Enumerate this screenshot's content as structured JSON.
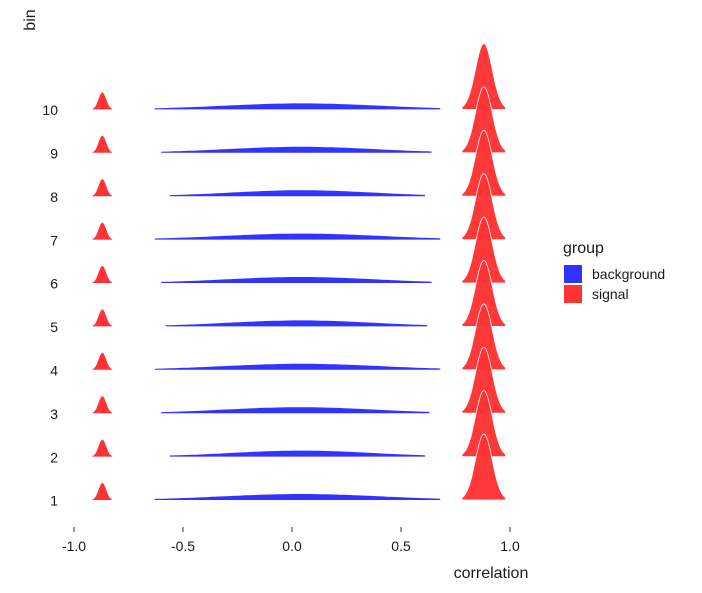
{
  "chart_data": {
    "type": "ridgeline",
    "title": "",
    "xlabel": "correlation",
    "ylabel": "bin",
    "xlim": [
      -1.0,
      1.0
    ],
    "x_ticks": [
      "-1.0",
      "-0.5",
      "0.0",
      "0.5",
      "1.0"
    ],
    "x_tick_values": [
      -1.0,
      -0.5,
      0.0,
      0.5,
      1.0
    ],
    "categories": [
      "1",
      "2",
      "3",
      "4",
      "5",
      "6",
      "7",
      "8",
      "9",
      "10"
    ],
    "grid": false,
    "legend": {
      "title": "group",
      "position": "right",
      "entries": [
        {
          "label": "background",
          "color": "#3333ff"
        },
        {
          "label": "signal",
          "color": "#ff3333"
        }
      ]
    },
    "series": [
      {
        "name": "background",
        "color": "#3333ff",
        "description": "broad density centred near 0 in every bin",
        "ranges": [
          [
            -0.63,
            0.68
          ],
          [
            -0.56,
            0.61
          ],
          [
            -0.6,
            0.63
          ],
          [
            -0.63,
            0.68
          ],
          [
            -0.58,
            0.62
          ],
          [
            -0.6,
            0.64
          ],
          [
            -0.63,
            0.68
          ],
          [
            -0.56,
            0.61
          ],
          [
            -0.6,
            0.64
          ],
          [
            -0.63,
            0.68
          ]
        ]
      },
      {
        "name": "signal",
        "color": "#ff3333",
        "description": "narrow peaks near -0.87 and 0.88 in every bin",
        "peaks": [
          -0.87,
          0.88
        ]
      }
    ]
  }
}
